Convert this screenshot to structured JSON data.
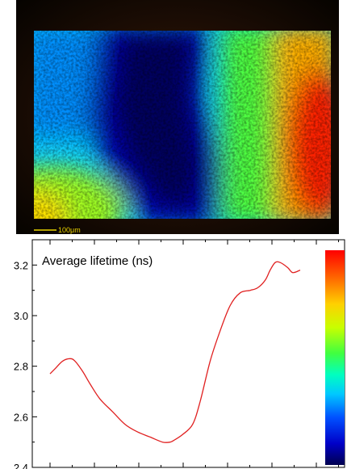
{
  "micrograph": {
    "scale_bar_label": "100μm",
    "scale_bar_color": "#e8d200",
    "colormap": [
      "#000050",
      "#0000c8",
      "#0050ff",
      "#00c8ff",
      "#00ffc0",
      "#40ff40",
      "#c8ff00",
      "#ffd000",
      "#ff6000",
      "#ff0000"
    ]
  },
  "chart_data": {
    "type": "line",
    "title": "",
    "xlabel": "",
    "ylabel": "",
    "ylim": [
      2.4,
      3.3
    ],
    "xlim": [
      0,
      1
    ],
    "yticks": [
      2.4,
      2.6,
      2.8,
      3.0,
      3.2
    ],
    "ytick_labels": [
      "2.4",
      "2.6",
      "2.8",
      "3.0",
      "3.2"
    ],
    "grid": false,
    "legend": "none",
    "annotation": "Average lifetime (ns)",
    "line_color": "#e02020",
    "colorbar": {
      "placement": "right",
      "colors": [
        "#ff0000",
        "#ff6000",
        "#ffd000",
        "#c8ff00",
        "#40ff40",
        "#00ffc0",
        "#00c8ff",
        "#0050ff",
        "#0000c8",
        "#000050"
      ]
    },
    "series": [
      {
        "x": [
          0.0,
          0.02,
          0.05,
          0.08,
          0.1,
          0.13,
          0.16,
          0.2,
          0.25,
          0.3,
          0.35,
          0.4,
          0.45,
          0.48,
          0.5,
          0.53,
          0.57,
          0.6,
          0.64,
          0.68,
          0.72,
          0.76,
          0.8,
          0.83,
          0.86,
          0.88,
          0.9,
          0.92,
          0.95,
          0.97,
          1.0
        ],
        "y": [
          2.77,
          2.79,
          2.82,
          2.83,
          2.82,
          2.78,
          2.73,
          2.67,
          2.62,
          2.57,
          2.54,
          2.52,
          2.5,
          2.5,
          2.51,
          2.53,
          2.57,
          2.66,
          2.82,
          2.94,
          3.04,
          3.09,
          3.1,
          3.11,
          3.14,
          3.18,
          3.21,
          3.21,
          3.19,
          3.17,
          3.18
        ]
      }
    ]
  }
}
